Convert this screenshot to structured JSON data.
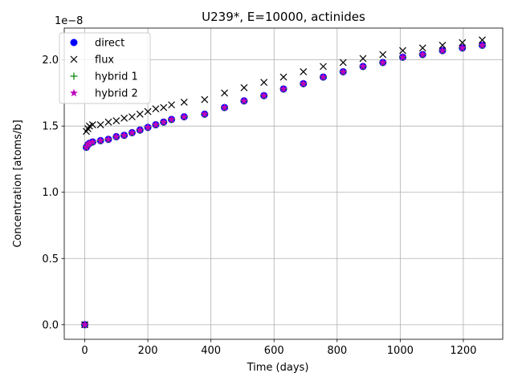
{
  "chart_data": {
    "type": "scatter",
    "title": "U239*, E=10000, actinides",
    "xlabel": "Time (days)",
    "ylabel": "Concentration [atoms/b]",
    "y_offset_text": "1e−8",
    "xlim": [
      -65,
      1325
    ],
    "ylim": [
      -0.11,
      2.24
    ],
    "y_scale_factor": 1e-08,
    "x_ticks": [
      0,
      200,
      400,
      600,
      800,
      1000,
      1200
    ],
    "x_tick_labels": [
      "0",
      "200",
      "400",
      "600",
      "800",
      "1000",
      "1200"
    ],
    "y_ticks": [
      0.0,
      0.5,
      1.0,
      1.5,
      2.0
    ],
    "y_tick_labels": [
      "0.0",
      "0.5",
      "1.0",
      "1.5",
      "2.0"
    ],
    "grid": true,
    "legend_position": "upper-left",
    "x": [
      0,
      5,
      10,
      15,
      25,
      50,
      75,
      100,
      125,
      150,
      175,
      200,
      225,
      250,
      275,
      315,
      380,
      443,
      505,
      568,
      630,
      693,
      756,
      819,
      882,
      945,
      1008,
      1071,
      1134,
      1197,
      1260
    ],
    "series": [
      {
        "name": "direct",
        "marker": "circle",
        "color": "#0000ff",
        "values": [
          0.0,
          1.34,
          1.36,
          1.37,
          1.38,
          1.39,
          1.4,
          1.42,
          1.43,
          1.45,
          1.47,
          1.49,
          1.51,
          1.53,
          1.55,
          1.57,
          1.59,
          1.64,
          1.69,
          1.73,
          1.78,
          1.82,
          1.87,
          1.91,
          1.95,
          1.98,
          2.02,
          2.04,
          2.07,
          2.09,
          2.11
        ]
      },
      {
        "name": "flux",
        "marker": "x",
        "color": "#000000",
        "values": [
          0.0,
          1.46,
          1.48,
          1.5,
          1.51,
          1.51,
          1.53,
          1.54,
          1.56,
          1.57,
          1.59,
          1.61,
          1.63,
          1.64,
          1.66,
          1.68,
          1.7,
          1.75,
          1.79,
          1.83,
          1.87,
          1.91,
          1.95,
          1.98,
          2.01,
          2.04,
          2.07,
          2.09,
          2.11,
          2.13,
          2.15
        ]
      },
      {
        "name": "hybrid 1",
        "marker": "plus",
        "color": "#008000",
        "values": [
          0.0,
          1.34,
          1.36,
          1.37,
          1.38,
          1.39,
          1.4,
          1.42,
          1.43,
          1.45,
          1.47,
          1.49,
          1.51,
          1.53,
          1.55,
          1.57,
          1.59,
          1.64,
          1.69,
          1.73,
          1.78,
          1.82,
          1.87,
          1.91,
          1.95,
          1.98,
          2.02,
          2.04,
          2.07,
          2.09,
          2.11
        ]
      },
      {
        "name": "hybrid 2",
        "marker": "star",
        "color": "#bf00bf",
        "values": [
          0.0,
          1.34,
          1.36,
          1.37,
          1.38,
          1.39,
          1.4,
          1.42,
          1.43,
          1.45,
          1.47,
          1.49,
          1.51,
          1.53,
          1.55,
          1.57,
          1.59,
          1.64,
          1.69,
          1.73,
          1.78,
          1.82,
          1.87,
          1.91,
          1.95,
          1.98,
          2.02,
          2.04,
          2.07,
          2.09,
          2.11
        ]
      }
    ]
  }
}
